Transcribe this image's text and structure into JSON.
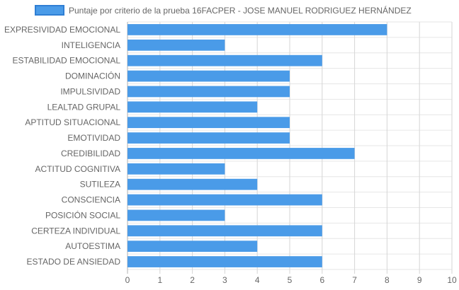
{
  "chart_data": {
    "type": "bar",
    "orientation": "horizontal",
    "categories": [
      "EXPRESIVIDAD EMOCIONAL",
      "INTELIGENCIA",
      "ESTABILIDAD EMOCIONAL",
      "DOMINACIÓN",
      "IMPULSIVIDAD",
      "LEALTAD GRUPAL",
      "APTITUD SITUACIONAL",
      "EMOTIVIDAD",
      "CREDIBILIDAD",
      "ACTITUD COGNITIVA",
      "SUTILEZA",
      "CONSCIENCIA",
      "POSICIÓN SOCIAL",
      "CERTEZA INDIVIDUAL",
      "AUTOESTIMA",
      "ESTADO DE ANSIEDAD"
    ],
    "series": [
      {
        "name": "Puntaje por criterio de la prueba 16FACPER - JOSE MANUEL RODRIGUEZ HERNÁNDEZ",
        "values": [
          8,
          3,
          6,
          5,
          5,
          4,
          5,
          5,
          7,
          3,
          4,
          6,
          3,
          6,
          4,
          6
        ],
        "color": "#4a9be8",
        "border_color": "#2f7fd4"
      }
    ],
    "xlim": [
      0,
      10
    ],
    "x_ticks": [
      "0",
      "1",
      "2",
      "3",
      "4",
      "5",
      "6",
      "7",
      "8",
      "9",
      "10"
    ],
    "grid": true,
    "legend_position": "top-center"
  }
}
